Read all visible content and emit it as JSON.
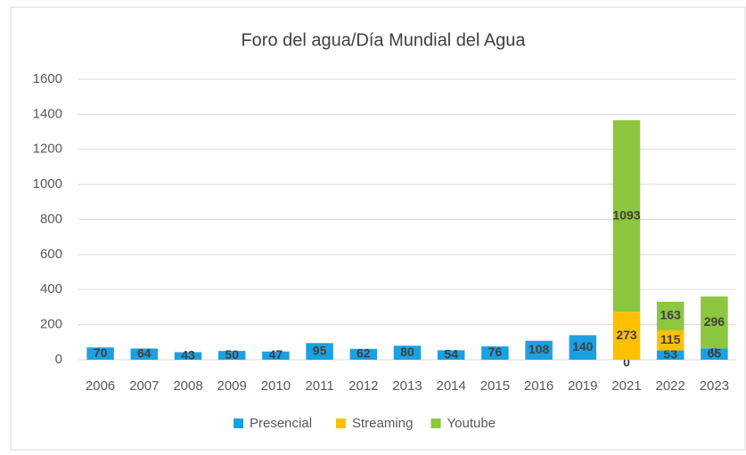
{
  "chart_data": {
    "type": "stacked_bar",
    "title": "Foro del agua/Día Mundial del Agua",
    "categories": [
      "2006",
      "2007",
      "2008",
      "2009",
      "2010",
      "2011",
      "2012",
      "2013",
      "2014",
      "2015",
      "2016",
      "2019",
      "2021",
      "2022",
      "2023"
    ],
    "series": [
      {
        "name": "Presencial",
        "color": "#1ba1e2",
        "values": [
          70,
          64,
          43,
          50,
          47,
          95,
          62,
          80,
          54,
          76,
          108,
          140,
          0,
          53,
          65
        ]
      },
      {
        "name": "Streaming",
        "color": "#ffc000",
        "values": [
          null,
          null,
          null,
          null,
          null,
          null,
          null,
          null,
          null,
          null,
          null,
          null,
          273,
          115,
          0
        ]
      },
      {
        "name": "Youtube",
        "color": "#8dc63f",
        "values": [
          null,
          null,
          null,
          null,
          null,
          null,
          null,
          null,
          null,
          null,
          null,
          null,
          1093,
          163,
          296
        ]
      }
    ],
    "ylim": [
      0,
      1600
    ],
    "yticks": [
      0,
      200,
      400,
      600,
      800,
      1000,
      1200,
      1400,
      1600
    ],
    "grid": true,
    "legend": "bottom"
  }
}
